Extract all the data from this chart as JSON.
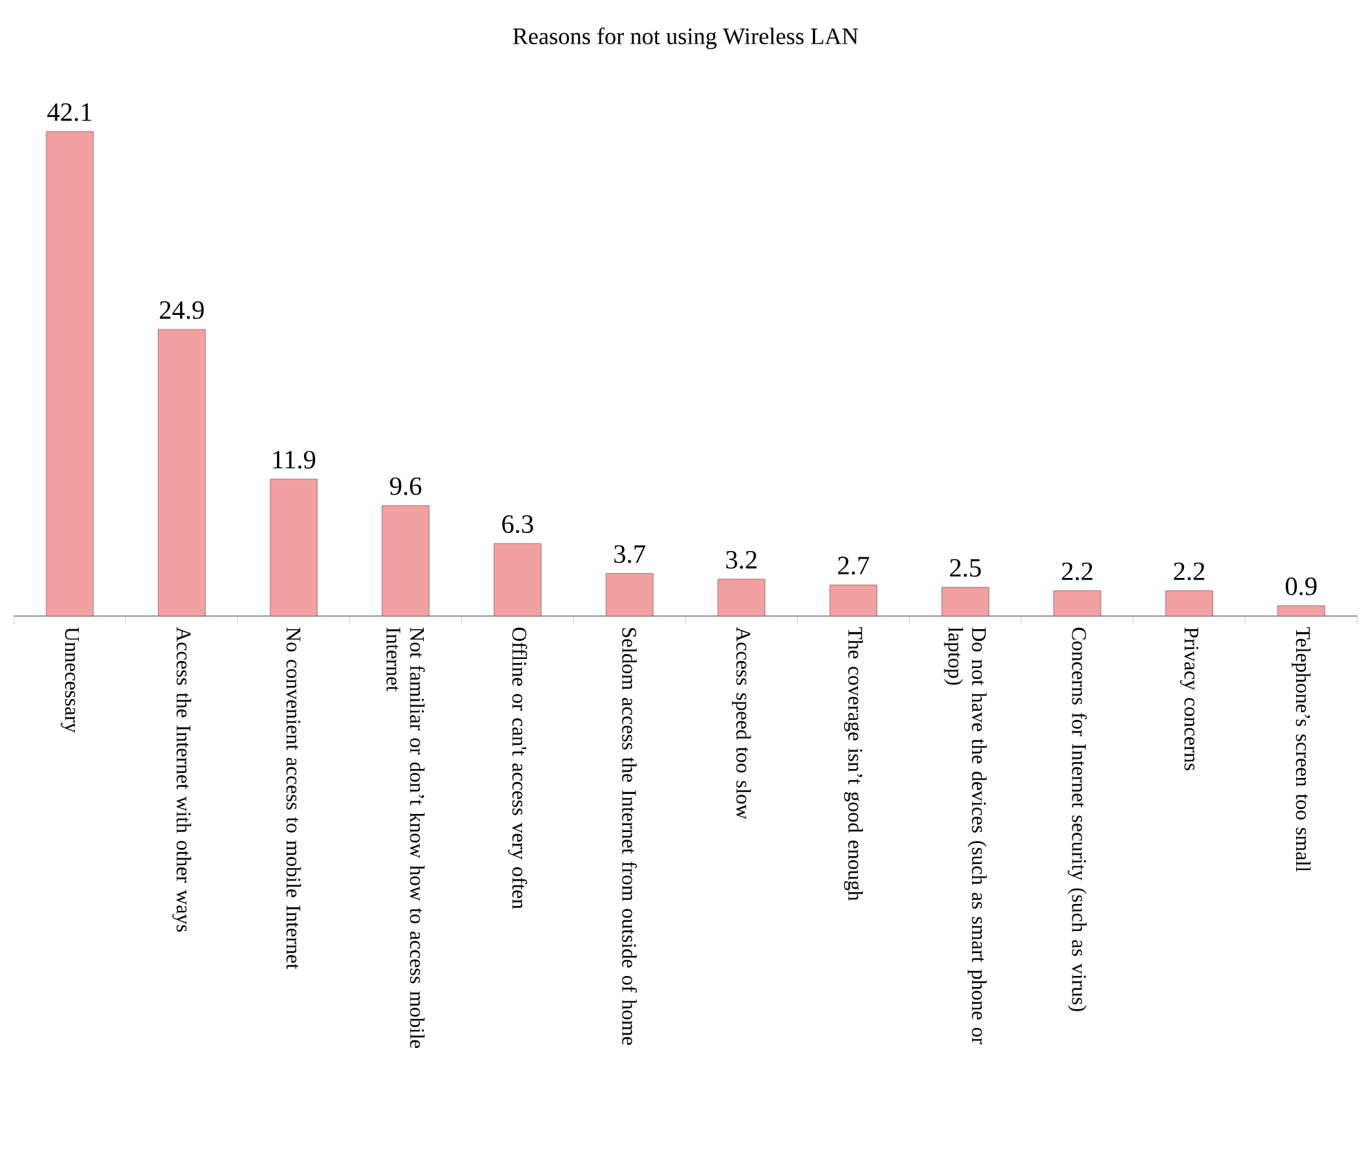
{
  "chart_data": {
    "type": "bar",
    "title": "Reasons for not using Wireless LAN",
    "categories": [
      "Unnecessary",
      "Access the Internet with other ways",
      "No convenient access to mobile Internet",
      "Not familiar or don’t know how to access mobile Internet",
      "Offline or can't access very often",
      "Seldom access the Internet from outside of home",
      "Access speed too slow",
      "The coverage isn’t good enough",
      "Do not have the devices (such as smart phone or laptop)",
      "Concerns for Internet security (such as virus)",
      "Privacy concerns",
      "Telephone’s screen too small"
    ],
    "values": [
      42.1,
      24.9,
      11.9,
      9.6,
      6.3,
      3.7,
      3.2,
      2.7,
      2.5,
      2.2,
      2.2,
      0.9
    ],
    "color": "#f2a0a0",
    "data_labels": true
  }
}
